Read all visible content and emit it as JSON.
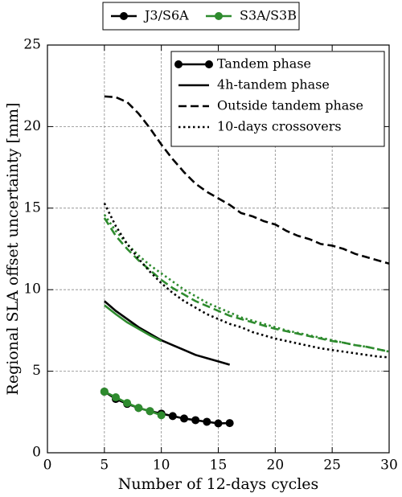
{
  "chart_data": {
    "type": "line",
    "xlabel": "Number of 12-days cycles",
    "ylabel": "Regional SLA offset uncertainty [mm]",
    "xlim": [
      0,
      30
    ],
    "xticks": [
      0,
      5,
      10,
      15,
      20,
      25,
      30
    ],
    "ylim": [
      0,
      25
    ],
    "yticks": [
      0,
      5,
      10,
      15,
      20,
      25
    ],
    "grid": true,
    "missions": [
      {
        "name": "J3/S6A",
        "color": "#000000"
      },
      {
        "name": "S3A/S3B",
        "color": "#2e8b2e"
      }
    ],
    "phases": [
      {
        "name": "Tandem phase",
        "dash": "solid",
        "marker": true
      },
      {
        "name": "4h-tandem phase",
        "dash": "solid",
        "marker": false
      },
      {
        "name": "Outside tandem phase",
        "dash": "dashed",
        "marker": false
      },
      {
        "name": "10-days crossovers",
        "dash": "dotted",
        "marker": false
      }
    ],
    "legend_position": "upper right",
    "series": [
      {
        "mission": 0,
        "phase": 2,
        "x": [
          5,
          6,
          7,
          8,
          9,
          10,
          11,
          12,
          13,
          14,
          15,
          16,
          17,
          18,
          19,
          20,
          21,
          22,
          23,
          24,
          25,
          26,
          27,
          28,
          29,
          30
        ],
        "values": [
          21.85,
          21.8,
          21.5,
          20.8,
          19.9,
          18.9,
          18.0,
          17.2,
          16.5,
          16.0,
          15.6,
          15.2,
          14.7,
          14.5,
          14.2,
          14.0,
          13.6,
          13.3,
          13.1,
          12.8,
          12.7,
          12.5,
          12.2,
          12.0,
          11.8,
          11.6
        ]
      },
      {
        "mission": 1,
        "phase": 3,
        "x": [
          5,
          6,
          7,
          8,
          9,
          10,
          11,
          12,
          13,
          14,
          15,
          16,
          17,
          18,
          19,
          20,
          21,
          22,
          23,
          24,
          25,
          26,
          27,
          28,
          29,
          30
        ],
        "values": [
          14.6,
          13.6,
          12.8,
          12.1,
          11.5,
          11.0,
          10.5,
          10.0,
          9.6,
          9.2,
          8.9,
          8.6,
          8.3,
          8.1,
          7.9,
          7.7,
          7.5,
          7.35,
          7.2,
          7.05,
          6.9,
          6.75,
          6.6,
          6.5,
          6.35,
          6.2
        ]
      },
      {
        "mission": 1,
        "phase": 2,
        "x": [
          5,
          6,
          7,
          8,
          9,
          10,
          11,
          12,
          13,
          14,
          15,
          16,
          17,
          18,
          19,
          20,
          21,
          22,
          23,
          24,
          25,
          26,
          27,
          28,
          29,
          30
        ],
        "values": [
          14.4,
          13.3,
          12.5,
          11.8,
          11.2,
          10.6,
          10.1,
          9.7,
          9.3,
          9.0,
          8.7,
          8.4,
          8.2,
          8.0,
          7.8,
          7.6,
          7.45,
          7.3,
          7.15,
          7.0,
          6.85,
          6.75,
          6.6,
          6.5,
          6.35,
          6.2
        ]
      },
      {
        "mission": 0,
        "phase": 3,
        "x": [
          5,
          6,
          7,
          8,
          9,
          10,
          11,
          12,
          13,
          14,
          15,
          16,
          17,
          18,
          19,
          20,
          21,
          22,
          23,
          24,
          25,
          26,
          27,
          28,
          29,
          30
        ],
        "values": [
          15.3,
          13.9,
          12.8,
          11.9,
          11.1,
          10.4,
          9.8,
          9.3,
          8.9,
          8.5,
          8.2,
          7.9,
          7.7,
          7.4,
          7.2,
          7.0,
          6.85,
          6.7,
          6.55,
          6.4,
          6.3,
          6.2,
          6.1,
          6.0,
          5.9,
          5.85
        ]
      },
      {
        "mission": 0,
        "phase": 1,
        "x": [
          5,
          6,
          7,
          8,
          9,
          10,
          11,
          12,
          13,
          14,
          15,
          16
        ],
        "values": [
          9.3,
          8.7,
          8.2,
          7.7,
          7.3,
          6.9,
          6.6,
          6.3,
          6.0,
          5.8,
          5.6,
          5.4
        ]
      },
      {
        "mission": 1,
        "phase": 1,
        "x": [
          5,
          6,
          7,
          8,
          9,
          10
        ],
        "values": [
          9.05,
          8.5,
          8.0,
          7.6,
          7.2,
          6.85
        ]
      },
      {
        "mission": 0,
        "phase": 0,
        "x": [
          5,
          6,
          7,
          8,
          9,
          10,
          11,
          12,
          13,
          14,
          15,
          16
        ],
        "values": [
          3.75,
          3.3,
          3.0,
          2.75,
          2.55,
          2.4,
          2.25,
          2.1,
          2.0,
          1.9,
          1.8,
          1.82
        ]
      },
      {
        "mission": 1,
        "phase": 0,
        "x": [
          5,
          6,
          7,
          8,
          9,
          10
        ],
        "values": [
          3.75,
          3.4,
          3.05,
          2.75,
          2.55,
          2.3
        ]
      }
    ]
  }
}
